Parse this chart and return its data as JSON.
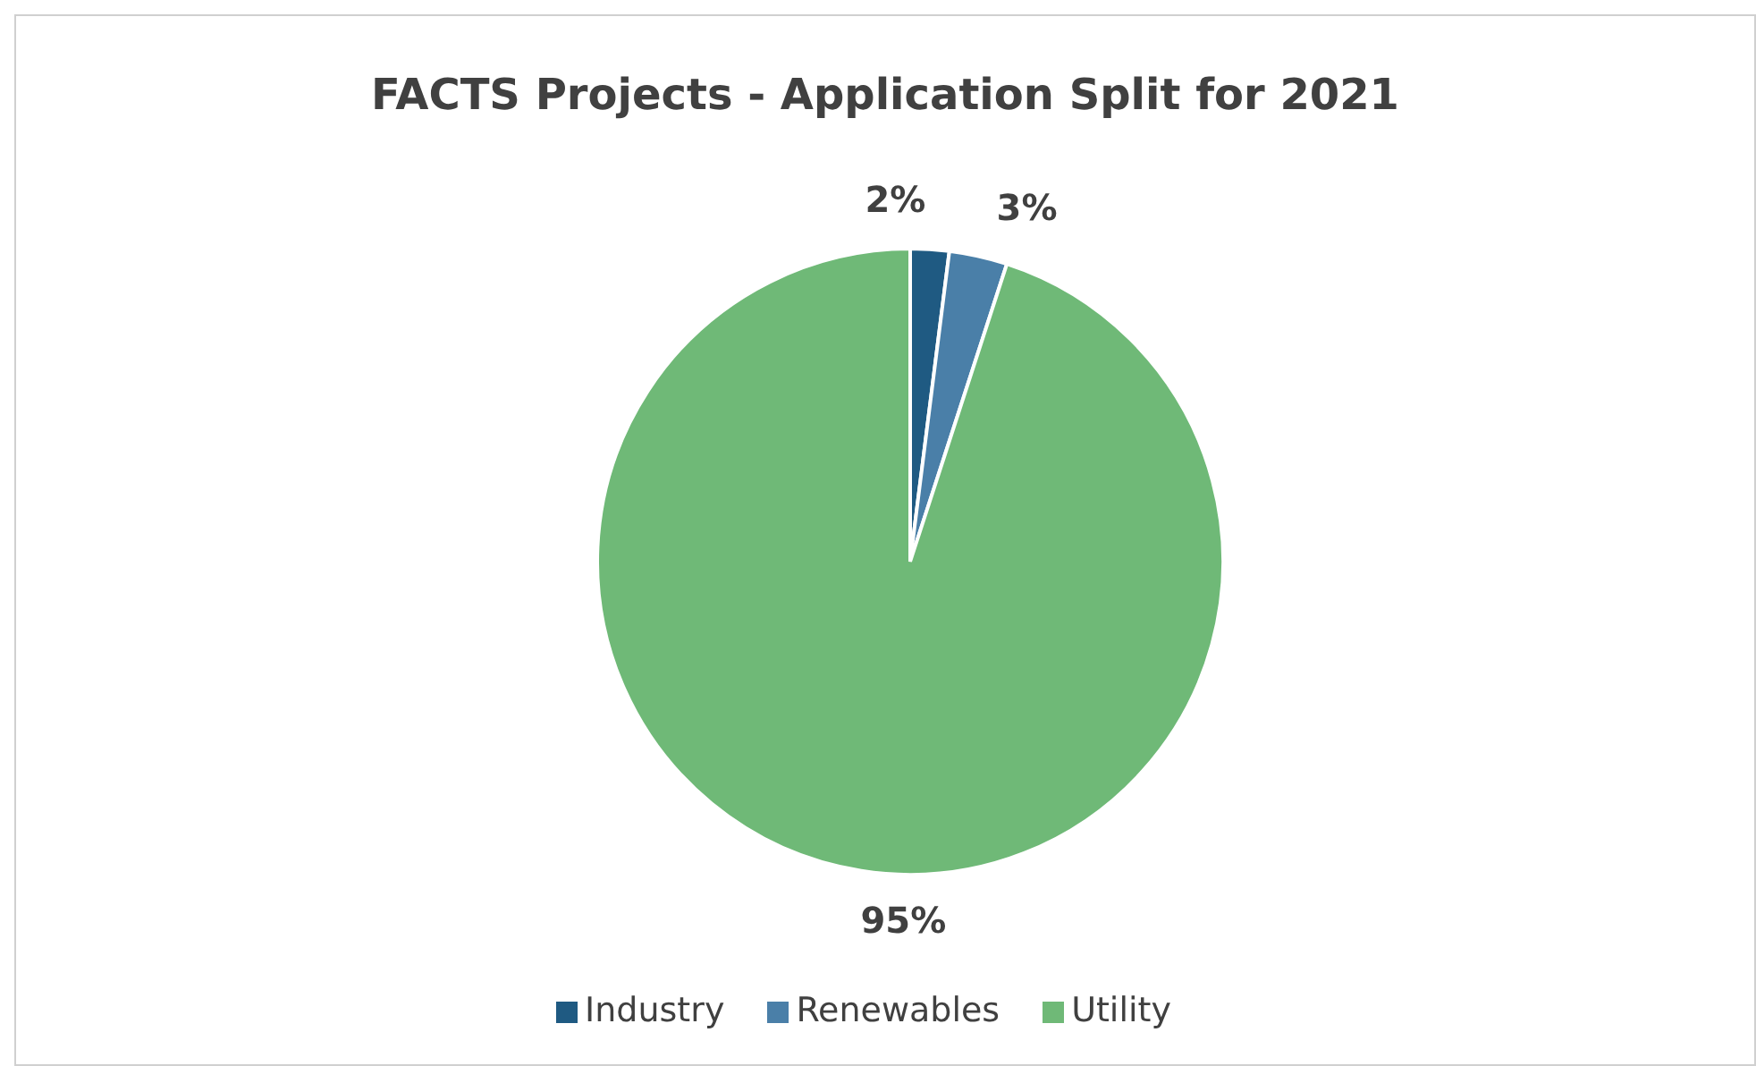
{
  "chart_data": {
    "type": "pie",
    "title": "FACTS Projects - Application Split for 2021",
    "categories": [
      "Industry",
      "Renewables",
      "Utility"
    ],
    "values": [
      2,
      3,
      95
    ],
    "colors": [
      "#1f5a82",
      "#4a7fa8",
      "#6fb977"
    ],
    "value_labels": [
      "2%",
      "3%",
      "95%"
    ],
    "legend": "bottom"
  }
}
